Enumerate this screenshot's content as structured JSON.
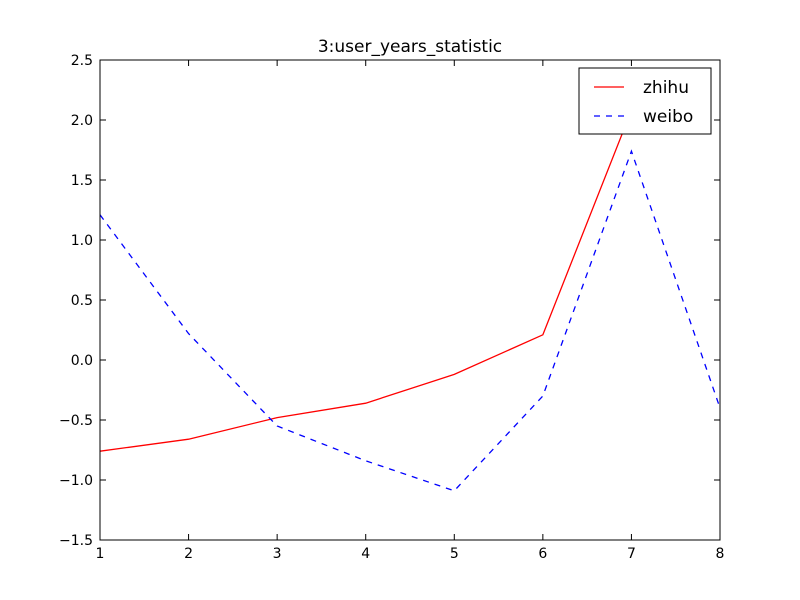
{
  "chart_data": {
    "type": "line",
    "title": "3:user_years_statistic",
    "xlabel": "",
    "ylabel": "",
    "x": [
      1,
      2,
      3,
      4,
      5,
      6,
      7,
      8
    ],
    "xlim": [
      1,
      8
    ],
    "ylim": [
      -1.5,
      2.5
    ],
    "xticks": [
      1,
      2,
      3,
      4,
      5,
      6,
      7,
      8
    ],
    "xtick_labels": [
      "1",
      "2",
      "3",
      "4",
      "5",
      "6",
      "7",
      "8"
    ],
    "yticks": [
      -1.5,
      -1.0,
      -0.5,
      0.0,
      0.5,
      1.0,
      1.5,
      2.0,
      2.5
    ],
    "ytick_labels": [
      "−1.5",
      "−1.0",
      "−0.5",
      "0.0",
      "0.5",
      "1.0",
      "1.5",
      "2.0",
      "2.5"
    ],
    "grid": false,
    "legend_position": "top-right",
    "series": [
      {
        "name": "zhihu",
        "color": "#ff0000",
        "style": "solid",
        "values": [
          -0.76,
          -0.66,
          -0.48,
          -0.36,
          -0.12,
          0.21,
          2.08,
          null
        ]
      },
      {
        "name": "weibo",
        "color": "#0000ff",
        "style": "dashed",
        "values": [
          1.21,
          0.22,
          -0.55,
          -0.84,
          -1.09,
          -0.3,
          1.74,
          -0.4
        ]
      }
    ]
  }
}
